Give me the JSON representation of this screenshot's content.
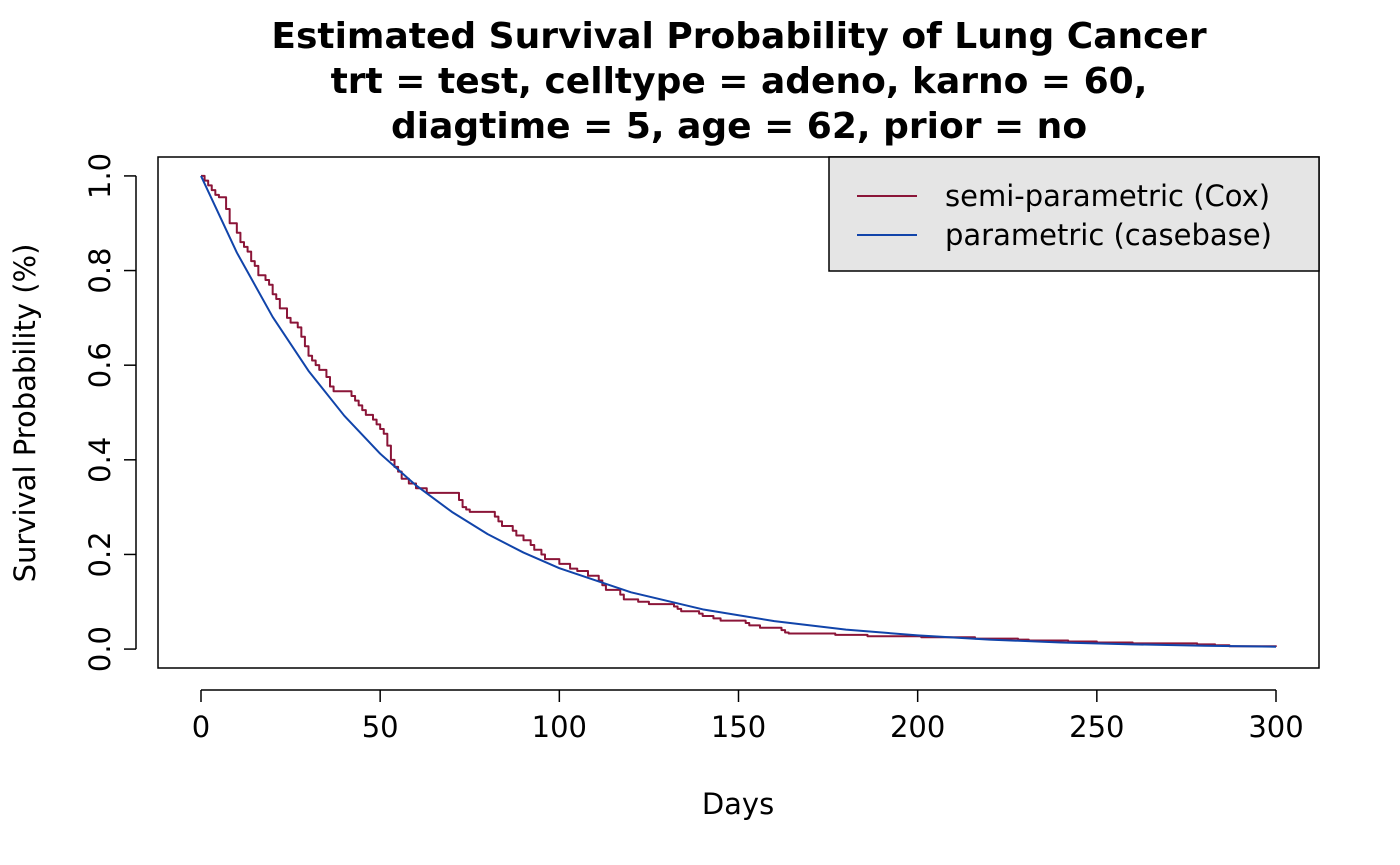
{
  "chart_data": {
    "type": "line",
    "title_lines": [
      "Estimated Survival Probability of Lung Cancer",
      "trt = test, celltype = adeno, karno = 60,",
      "diagtime = 5, age = 62, prior = no"
    ],
    "xlabel": "Days",
    "ylabel": "Survival Probability (%)",
    "xlim": [
      -12,
      312
    ],
    "ylim": [
      -0.04,
      1.04
    ],
    "x_ticks": [
      0,
      50,
      100,
      150,
      200,
      250,
      300
    ],
    "x_tick_labels": [
      "0",
      "50",
      "100",
      "150",
      "200",
      "250",
      "300"
    ],
    "y_ticks": [
      0.0,
      0.2,
      0.4,
      0.6,
      0.8,
      1.0
    ],
    "y_tick_labels": [
      "0.0",
      "0.2",
      "0.4",
      "0.6",
      "0.8",
      "1.0"
    ],
    "grid": false,
    "legend_position": "top-right",
    "legend_background": "#e5e5e5",
    "series": [
      {
        "name": "semi-parametric (Cox)",
        "style": "step",
        "color": "#8b1538",
        "x": [
          0,
          1,
          2,
          3,
          4,
          5,
          7,
          8,
          10,
          11,
          12,
          13,
          14,
          15,
          16,
          18,
          19,
          20,
          21,
          22,
          24,
          25,
          27,
          28,
          29,
          30,
          31,
          32,
          33,
          35,
          36,
          37,
          42,
          43,
          44,
          45,
          46,
          48,
          49,
          50,
          51,
          52,
          53,
          54,
          55,
          56,
          58,
          60,
          63,
          72,
          73,
          74,
          75,
          82,
          83,
          84,
          87,
          88,
          90,
          92,
          93,
          95,
          96,
          100,
          103,
          105,
          108,
          111,
          112,
          113,
          117,
          118,
          122,
          125,
          132,
          133,
          134,
          139,
          140,
          143,
          145,
          152,
          153,
          156,
          162,
          163,
          164,
          177,
          186,
          201,
          216,
          228,
          231,
          242,
          250,
          260,
          278,
          283,
          287,
          300
        ],
        "y": [
          1.0,
          0.99,
          0.98,
          0.97,
          0.96,
          0.955,
          0.93,
          0.9,
          0.88,
          0.86,
          0.85,
          0.84,
          0.82,
          0.81,
          0.79,
          0.78,
          0.77,
          0.75,
          0.74,
          0.72,
          0.7,
          0.69,
          0.68,
          0.66,
          0.64,
          0.62,
          0.61,
          0.6,
          0.59,
          0.575,
          0.555,
          0.545,
          0.535,
          0.525,
          0.515,
          0.505,
          0.495,
          0.485,
          0.475,
          0.465,
          0.455,
          0.43,
          0.4,
          0.385,
          0.375,
          0.36,
          0.35,
          0.34,
          0.33,
          0.315,
          0.3,
          0.295,
          0.29,
          0.28,
          0.27,
          0.26,
          0.25,
          0.24,
          0.23,
          0.22,
          0.21,
          0.2,
          0.19,
          0.18,
          0.17,
          0.165,
          0.155,
          0.145,
          0.135,
          0.125,
          0.115,
          0.105,
          0.1,
          0.095,
          0.09,
          0.085,
          0.08,
          0.075,
          0.07,
          0.065,
          0.06,
          0.055,
          0.05,
          0.045,
          0.04,
          0.035,
          0.033,
          0.03,
          0.027,
          0.025,
          0.022,
          0.02,
          0.018,
          0.016,
          0.014,
          0.012,
          0.01,
          0.008,
          0.006,
          0.005
        ]
      },
      {
        "name": "parametric (casebase)",
        "style": "smooth",
        "color": "#1144aa",
        "x": [
          0,
          10,
          20,
          30,
          40,
          50,
          60,
          70,
          80,
          90,
          100,
          120,
          140,
          160,
          180,
          200,
          220,
          240,
          260,
          280,
          300
        ],
        "y": [
          1.0,
          0.838,
          0.702,
          0.588,
          0.493,
          0.413,
          0.346,
          0.29,
          0.243,
          0.204,
          0.171,
          0.12,
          0.084,
          0.059,
          0.041,
          0.029,
          0.02,
          0.014,
          0.01,
          0.007,
          0.005
        ]
      }
    ]
  }
}
